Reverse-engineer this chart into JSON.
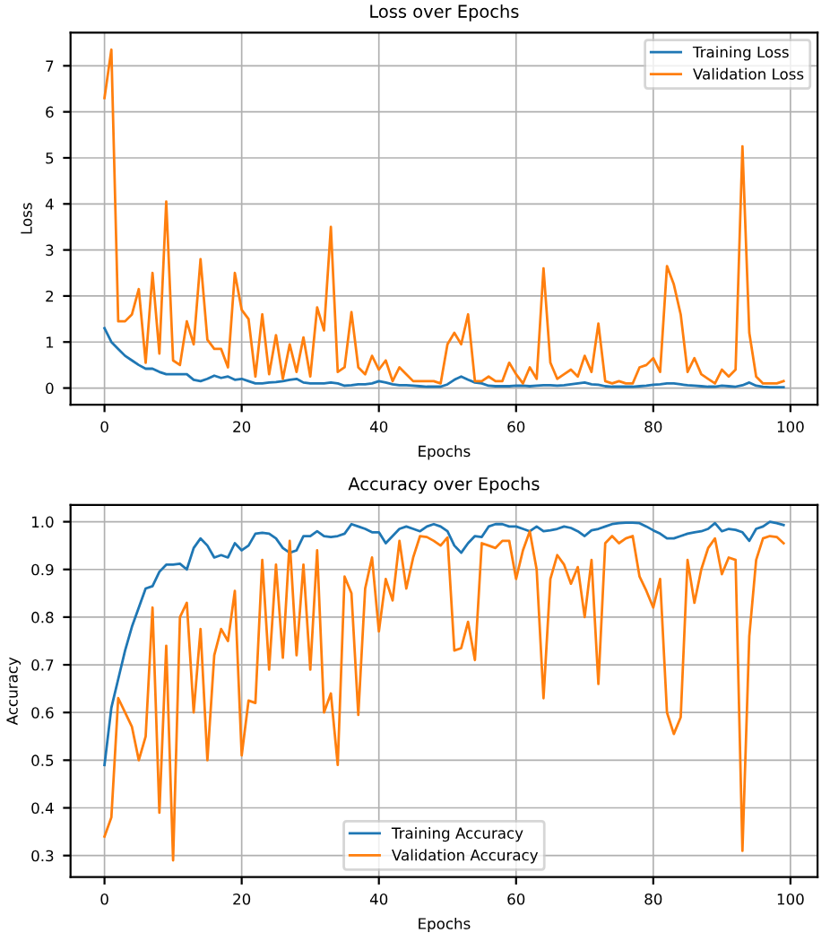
{
  "chart_data": [
    {
      "type": "line",
      "title": "Loss over Epochs",
      "x": [
        0,
        1,
        2,
        3,
        4,
        5,
        6,
        7,
        8,
        9,
        10,
        11,
        12,
        13,
        14,
        15,
        16,
        17,
        18,
        19,
        20,
        21,
        22,
        23,
        24,
        25,
        26,
        27,
        28,
        29,
        30,
        31,
        32,
        33,
        34,
        35,
        36,
        37,
        38,
        39,
        40,
        41,
        42,
        43,
        44,
        45,
        46,
        47,
        48,
        49,
        50,
        51,
        52,
        53,
        54,
        55,
        56,
        57,
        58,
        59,
        60,
        61,
        62,
        63,
        64,
        65,
        66,
        67,
        68,
        69,
        70,
        71,
        72,
        73,
        74,
        75,
        76,
        77,
        78,
        79,
        80,
        81,
        82,
        83,
        84,
        85,
        86,
        87,
        88,
        89,
        90,
        91,
        92,
        93,
        94,
        95,
        96,
        97,
        98,
        99
      ],
      "xlabel": "Epochs",
      "ylabel": "Loss",
      "xlim": [
        -4.95,
        103.95
      ],
      "xticks": [
        0,
        20,
        40,
        60,
        80,
        100
      ],
      "ylim": [
        -0.36,
        7.72
      ],
      "yticks": [
        0,
        1,
        2,
        3,
        4,
        5,
        6,
        7
      ],
      "grid": true,
      "legend": "top right",
      "series": [
        {
          "name": "Training Loss",
          "color": "#1f77b4",
          "values": [
            1.3,
            1.0,
            0.85,
            0.7,
            0.6,
            0.5,
            0.42,
            0.42,
            0.35,
            0.3,
            0.3,
            0.3,
            0.3,
            0.18,
            0.15,
            0.2,
            0.27,
            0.22,
            0.25,
            0.18,
            0.2,
            0.15,
            0.1,
            0.1,
            0.12,
            0.13,
            0.15,
            0.18,
            0.2,
            0.12,
            0.1,
            0.1,
            0.1,
            0.12,
            0.1,
            0.05,
            0.06,
            0.08,
            0.08,
            0.1,
            0.15,
            0.12,
            0.08,
            0.06,
            0.06,
            0.05,
            0.04,
            0.03,
            0.03,
            0.03,
            0.08,
            0.18,
            0.25,
            0.18,
            0.12,
            0.1,
            0.05,
            0.04,
            0.04,
            0.04,
            0.05,
            0.05,
            0.04,
            0.05,
            0.06,
            0.06,
            0.05,
            0.06,
            0.08,
            0.1,
            0.12,
            0.08,
            0.07,
            0.04,
            0.03,
            0.03,
            0.03,
            0.03,
            0.04,
            0.05,
            0.07,
            0.08,
            0.1,
            0.1,
            0.08,
            0.06,
            0.05,
            0.04,
            0.03,
            0.03,
            0.05,
            0.04,
            0.03,
            0.06,
            0.12,
            0.05,
            0.03,
            0.02,
            0.02,
            0.02
          ]
        },
        {
          "name": "Validation Loss",
          "color": "#ff7f0e",
          "values": [
            6.3,
            7.35,
            1.45,
            1.45,
            1.6,
            2.15,
            0.55,
            2.5,
            0.75,
            4.05,
            0.6,
            0.5,
            1.45,
            0.95,
            2.8,
            1.05,
            0.85,
            0.85,
            0.45,
            2.5,
            1.7,
            1.5,
            0.25,
            1.6,
            0.3,
            1.15,
            0.2,
            0.95,
            0.35,
            1.1,
            0.25,
            1.75,
            1.25,
            3.5,
            0.35,
            0.45,
            1.65,
            0.45,
            0.3,
            0.7,
            0.4,
            0.6,
            0.15,
            0.45,
            0.3,
            0.15,
            0.15,
            0.15,
            0.15,
            0.1,
            0.95,
            1.2,
            0.95,
            1.6,
            0.15,
            0.15,
            0.25,
            0.15,
            0.15,
            0.55,
            0.3,
            0.1,
            0.45,
            0.2,
            2.6,
            0.55,
            0.2,
            0.3,
            0.4,
            0.25,
            0.7,
            0.35,
            1.4,
            0.15,
            0.1,
            0.15,
            0.1,
            0.1,
            0.45,
            0.5,
            0.65,
            0.35,
            2.65,
            2.25,
            1.6,
            0.35,
            0.65,
            0.3,
            0.2,
            0.1,
            0.4,
            0.25,
            0.4,
            5.25,
            1.2,
            0.25,
            0.1,
            0.1,
            0.1,
            0.15
          ]
        }
      ]
    },
    {
      "type": "line",
      "title": "Accuracy over Epochs",
      "x": [
        0,
        1,
        2,
        3,
        4,
        5,
        6,
        7,
        8,
        9,
        10,
        11,
        12,
        13,
        14,
        15,
        16,
        17,
        18,
        19,
        20,
        21,
        22,
        23,
        24,
        25,
        26,
        27,
        28,
        29,
        30,
        31,
        32,
        33,
        34,
        35,
        36,
        37,
        38,
        39,
        40,
        41,
        42,
        43,
        44,
        45,
        46,
        47,
        48,
        49,
        50,
        51,
        52,
        53,
        54,
        55,
        56,
        57,
        58,
        59,
        60,
        61,
        62,
        63,
        64,
        65,
        66,
        67,
        68,
        69,
        70,
        71,
        72,
        73,
        74,
        75,
        76,
        77,
        78,
        79,
        80,
        81,
        82,
        83,
        84,
        85,
        86,
        87,
        88,
        89,
        90,
        91,
        92,
        93,
        94,
        95,
        96,
        97,
        98,
        99
      ],
      "xlabel": "Epochs",
      "ylabel": "Accuracy",
      "xlim": [
        -4.95,
        103.95
      ],
      "xticks": [
        0,
        20,
        40,
        60,
        80,
        100
      ],
      "ylim": [
        0.255,
        1.035
      ],
      "yticks": [
        0.3,
        0.4,
        0.5,
        0.6,
        0.7,
        0.8,
        0.9,
        {
          "value": 1.0,
          "label": "1.0"
        }
      ],
      "grid": true,
      "legend": "bottom",
      "series": [
        {
          "name": "Training Accuracy",
          "color": "#1f77b4",
          "values": [
            0.49,
            0.61,
            0.67,
            0.73,
            0.78,
            0.82,
            0.86,
            0.865,
            0.895,
            0.91,
            0.91,
            0.912,
            0.9,
            0.945,
            0.965,
            0.95,
            0.925,
            0.93,
            0.925,
            0.955,
            0.94,
            0.95,
            0.975,
            0.977,
            0.975,
            0.965,
            0.945,
            0.935,
            0.94,
            0.97,
            0.97,
            0.98,
            0.97,
            0.968,
            0.97,
            0.975,
            0.995,
            0.99,
            0.985,
            0.978,
            0.978,
            0.955,
            0.97,
            0.985,
            0.99,
            0.985,
            0.98,
            0.99,
            0.995,
            0.99,
            0.98,
            0.95,
            0.935,
            0.955,
            0.97,
            0.968,
            0.99,
            0.995,
            0.995,
            0.99,
            0.99,
            0.985,
            0.98,
            0.99,
            0.98,
            0.982,
            0.985,
            0.99,
            0.987,
            0.98,
            0.97,
            0.982,
            0.985,
            0.99,
            0.995,
            0.997,
            0.998,
            0.998,
            0.997,
            0.99,
            0.982,
            0.975,
            0.965,
            0.965,
            0.97,
            0.975,
            0.978,
            0.98,
            0.985,
            0.997,
            0.98,
            0.985,
            0.983,
            0.978,
            0.96,
            0.985,
            0.99,
            1.0,
            0.997,
            0.993
          ]
        },
        {
          "name": "Validation Accuracy",
          "color": "#ff7f0e",
          "values": [
            0.34,
            0.38,
            0.63,
            0.6,
            0.57,
            0.5,
            0.55,
            0.82,
            0.39,
            0.74,
            0.29,
            0.8,
            0.83,
            0.6,
            0.775,
            0.5,
            0.72,
            0.775,
            0.75,
            0.855,
            0.51,
            0.625,
            0.62,
            0.92,
            0.69,
            0.91,
            0.715,
            0.96,
            0.72,
            0.91,
            0.69,
            0.94,
            0.6,
            0.64,
            0.49,
            0.885,
            0.85,
            0.595,
            0.86,
            0.925,
            0.77,
            0.88,
            0.835,
            0.96,
            0.86,
            0.925,
            0.97,
            0.968,
            0.96,
            0.95,
            0.967,
            0.73,
            0.735,
            0.79,
            0.71,
            0.955,
            0.95,
            0.945,
            0.96,
            0.96,
            0.88,
            0.94,
            0.98,
            0.9,
            0.63,
            0.88,
            0.93,
            0.91,
            0.87,
            0.905,
            0.8,
            0.92,
            0.66,
            0.955,
            0.97,
            0.955,
            0.965,
            0.97,
            0.885,
            0.855,
            0.82,
            0.88,
            0.6,
            0.555,
            0.59,
            0.92,
            0.83,
            0.9,
            0.945,
            0.965,
            0.89,
            0.925,
            0.92,
            0.31,
            0.76,
            0.92,
            0.965,
            0.97,
            0.968,
            0.955
          ]
        }
      ]
    }
  ]
}
